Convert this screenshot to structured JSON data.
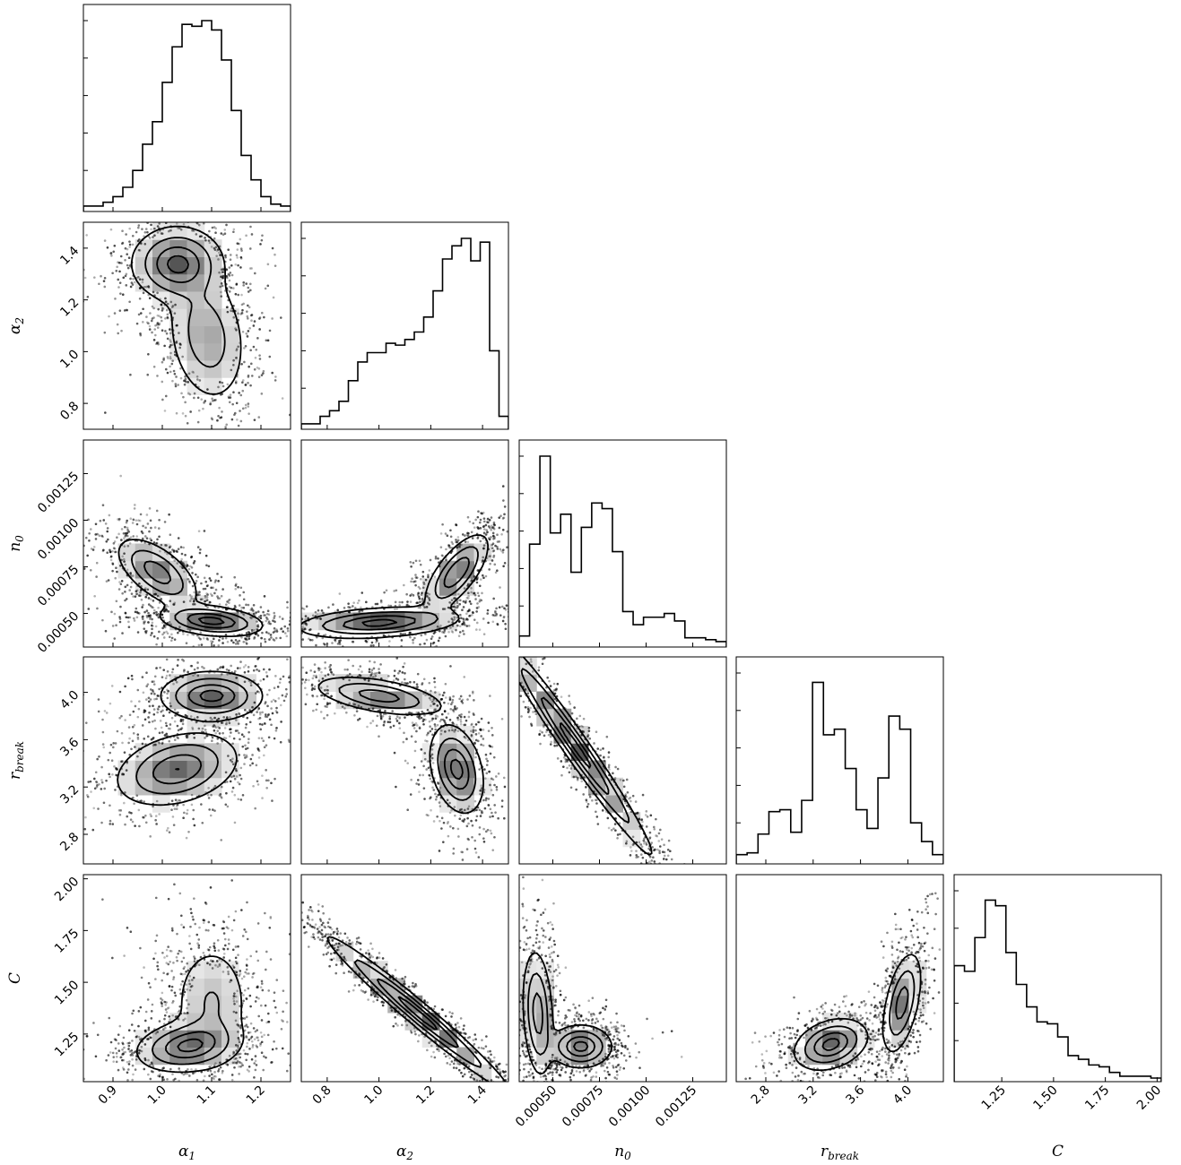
{
  "chart_data": {
    "type": "corner",
    "parameters": [
      {
        "key": "alpha1",
        "label": "α",
        "sub": "1",
        "range": [
          0.84,
          1.26
        ],
        "ticks": [
          0.9,
          1.0,
          1.1,
          1.2
        ],
        "tick_labels": [
          "0.9",
          "1.0",
          "1.1",
          "1.2"
        ]
      },
      {
        "key": "alpha2",
        "label": "α",
        "sub": "2",
        "range": [
          0.7,
          1.5
        ],
        "ticks": [
          0.8,
          1.0,
          1.2,
          1.4
        ],
        "tick_labels": [
          "0.8",
          "1.0",
          "1.2",
          "1.4"
        ]
      },
      {
        "key": "n0",
        "label": "n",
        "sub": "0",
        "range": [
          0.00032,
          0.00143
        ],
        "ticks": [
          0.0005,
          0.00075,
          0.001,
          0.00125
        ],
        "tick_labels": [
          "0.00050",
          "0.00075",
          "0.00100",
          "0.00125"
        ]
      },
      {
        "key": "rbreak",
        "label": "r",
        "sub": "break",
        "range": [
          2.55,
          4.3
        ],
        "ticks": [
          2.8,
          3.2,
          3.6,
          4.0
        ],
        "tick_labels": [
          "2.8",
          "3.2",
          "3.6",
          "4.0"
        ]
      },
      {
        "key": "C",
        "label": "C",
        "sub": "",
        "range": [
          1.02,
          2.02
        ],
        "ticks": [
          1.25,
          1.5,
          1.75,
          2.0
        ],
        "tick_labels": [
          "1.25",
          "1.50",
          "1.75",
          "2.00"
        ]
      }
    ],
    "histograms": {
      "alpha1": [
        0.01,
        0.01,
        0.03,
        0.06,
        0.11,
        0.2,
        0.34,
        0.46,
        0.67,
        0.86,
        0.98,
        0.97,
        1.0,
        0.95,
        0.79,
        0.52,
        0.28,
        0.15,
        0.06,
        0.02,
        0.01
      ],
      "alpha2": [
        0.01,
        0.01,
        0.05,
        0.08,
        0.13,
        0.24,
        0.34,
        0.39,
        0.39,
        0.44,
        0.43,
        0.46,
        0.5,
        0.58,
        0.72,
        0.89,
        0.96,
        1.0,
        0.88,
        0.98,
        0.4,
        0.05
      ],
      "n0": [
        0.04,
        0.53,
        1.0,
        0.59,
        0.69,
        0.38,
        0.62,
        0.75,
        0.72,
        0.49,
        0.17,
        0.1,
        0.14,
        0.14,
        0.16,
        0.12,
        0.03,
        0.03,
        0.02,
        0.01
      ],
      "rbreak": [
        0.03,
        0.04,
        0.14,
        0.26,
        0.27,
        0.15,
        0.32,
        0.95,
        0.67,
        0.7,
        0.49,
        0.27,
        0.17,
        0.44,
        0.77,
        0.7,
        0.2,
        0.1,
        0.03
      ],
      "C": [
        0.6,
        0.57,
        0.75,
        0.95,
        0.92,
        0.67,
        0.5,
        0.38,
        0.3,
        0.29,
        0.22,
        0.12,
        0.1,
        0.07,
        0.06,
        0.03,
        0.01,
        0.01,
        0.01,
        0.0
      ]
    },
    "joint_modes": {
      "alpha1_alpha2": [
        {
          "x": 1.03,
          "y": 1.34,
          "sx": 0.045,
          "sy": 0.07,
          "rho": 0.0,
          "w": 1.0
        },
        {
          "x": 1.09,
          "y": 1.06,
          "sx": 0.04,
          "sy": 0.13,
          "rho": -0.2,
          "w": 0.55
        }
      ],
      "alpha1_n0": [
        {
          "x": 0.99,
          "y": 0.00072,
          "sx": 0.04,
          "sy": 9e-05,
          "rho": -0.6,
          "w": 0.8
        },
        {
          "x": 1.1,
          "y": 0.00046,
          "sx": 0.05,
          "sy": 4e-05,
          "rho": -0.3,
          "w": 1.0
        }
      ],
      "alpha2_n0": [
        {
          "x": 1.0,
          "y": 0.00045,
          "sx": 0.15,
          "sy": 4e-05,
          "rho": 0.3,
          "w": 1.0
        },
        {
          "x": 1.3,
          "y": 0.00072,
          "sx": 0.06,
          "sy": 0.0001,
          "rho": 0.7,
          "w": 0.9
        }
      ],
      "alpha1_rbreak": [
        {
          "x": 1.1,
          "y": 3.97,
          "sx": 0.05,
          "sy": 0.1,
          "rho": 0.0,
          "w": 1.0
        },
        {
          "x": 1.03,
          "y": 3.35,
          "sx": 0.06,
          "sy": 0.15,
          "rho": 0.3,
          "w": 0.9
        }
      ],
      "alpha2_rbreak": [
        {
          "x": 1.0,
          "y": 3.97,
          "sx": 0.12,
          "sy": 0.08,
          "rho": -0.5,
          "w": 0.8
        },
        {
          "x": 1.3,
          "y": 3.35,
          "sx": 0.05,
          "sy": 0.18,
          "rho": -0.3,
          "w": 1.0
        }
      ],
      "n0_rbreak": [
        {
          "x": 0.00062,
          "y": 3.55,
          "sx": 0.0002,
          "sy": 0.45,
          "rho": -0.98,
          "w": 1.0
        }
      ],
      "alpha1_C": [
        {
          "x": 1.05,
          "y": 1.19,
          "sx": 0.05,
          "sy": 0.06,
          "rho": 0.2,
          "w": 1.0
        },
        {
          "x": 1.1,
          "y": 1.4,
          "sx": 0.04,
          "sy": 0.15,
          "rho": 0.0,
          "w": 0.4
        }
      ],
      "alpha2_C": [
        {
          "x": 1.15,
          "y": 1.35,
          "sx": 0.17,
          "sy": 0.18,
          "rho": -0.98,
          "w": 1.0
        }
      ],
      "n0_C": [
        {
          "x": 0.00042,
          "y": 1.35,
          "sx": 4e-05,
          "sy": 0.15,
          "rho": -0.2,
          "w": 0.8
        },
        {
          "x": 0.00065,
          "y": 1.19,
          "sx": 8e-05,
          "sy": 0.05,
          "rho": 0.0,
          "w": 1.0
        }
      ],
      "rbreak_C": [
        {
          "x": 3.35,
          "y": 1.2,
          "sx": 0.15,
          "sy": 0.06,
          "rho": 0.3,
          "w": 1.0
        },
        {
          "x": 3.95,
          "y": 1.4,
          "sx": 0.08,
          "sy": 0.12,
          "rho": 0.5,
          "w": 0.8
        }
      ]
    },
    "grid": false,
    "legend": "none",
    "title": ""
  }
}
